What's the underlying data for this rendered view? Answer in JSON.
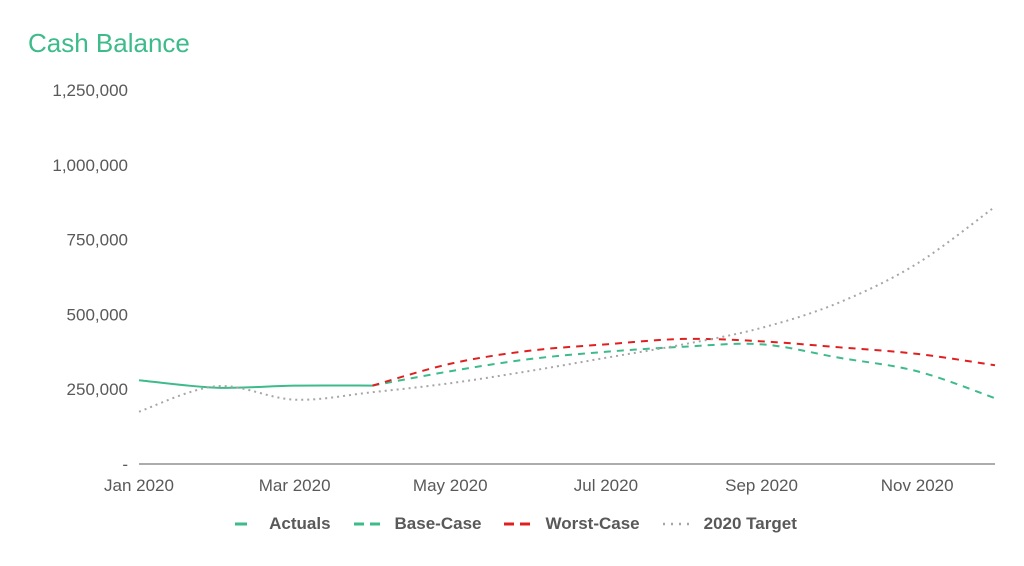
{
  "chart_data": {
    "type": "line",
    "title": "Cash Balance",
    "xlabel": "",
    "ylabel": "",
    "x": [
      "Jan 2020",
      "Feb 2020",
      "Mar 2020",
      "Apr 2020",
      "May 2020",
      "Jun 2020",
      "Jul 2020",
      "Aug 2020",
      "Sep 2020",
      "Oct 2020",
      "Nov 2020",
      "Dec 2020"
    ],
    "x_tick_labels": [
      "Jan 2020",
      "Mar 2020",
      "May 2020",
      "Jul 2020",
      "Sep 2020",
      "Nov 2020"
    ],
    "y_tick_labels": [
      "-",
      "250,000",
      "500,000",
      "750,000",
      "1,000,000",
      "1,250,000"
    ],
    "ylim": [
      0,
      1250000
    ],
    "grid": false,
    "legend_position": "bottom",
    "series": [
      {
        "name": "Actuals",
        "color": "#3dbb8a",
        "style": "solid",
        "values": [
          280000,
          255000,
          262000,
          262000,
          null,
          null,
          null,
          null,
          null,
          null,
          null,
          null
        ]
      },
      {
        "name": "Base-Case",
        "color": "#3dbb8a",
        "style": "dashed",
        "values": [
          null,
          null,
          null,
          262000,
          310000,
          350000,
          375000,
          392000,
          400000,
          355000,
          310000,
          220000
        ]
      },
      {
        "name": "Worst-Case",
        "color": "#e02020",
        "style": "dashed",
        "values": [
          null,
          null,
          null,
          262000,
          335000,
          378000,
          400000,
          418000,
          410000,
          390000,
          368000,
          330000
        ]
      },
      {
        "name": "2020 Target",
        "color": "#a6a6a6",
        "style": "dotted",
        "values": [
          175000,
          260000,
          215000,
          240000,
          270000,
          310000,
          355000,
          400000,
          455000,
          540000,
          670000,
          860000
        ]
      }
    ]
  }
}
